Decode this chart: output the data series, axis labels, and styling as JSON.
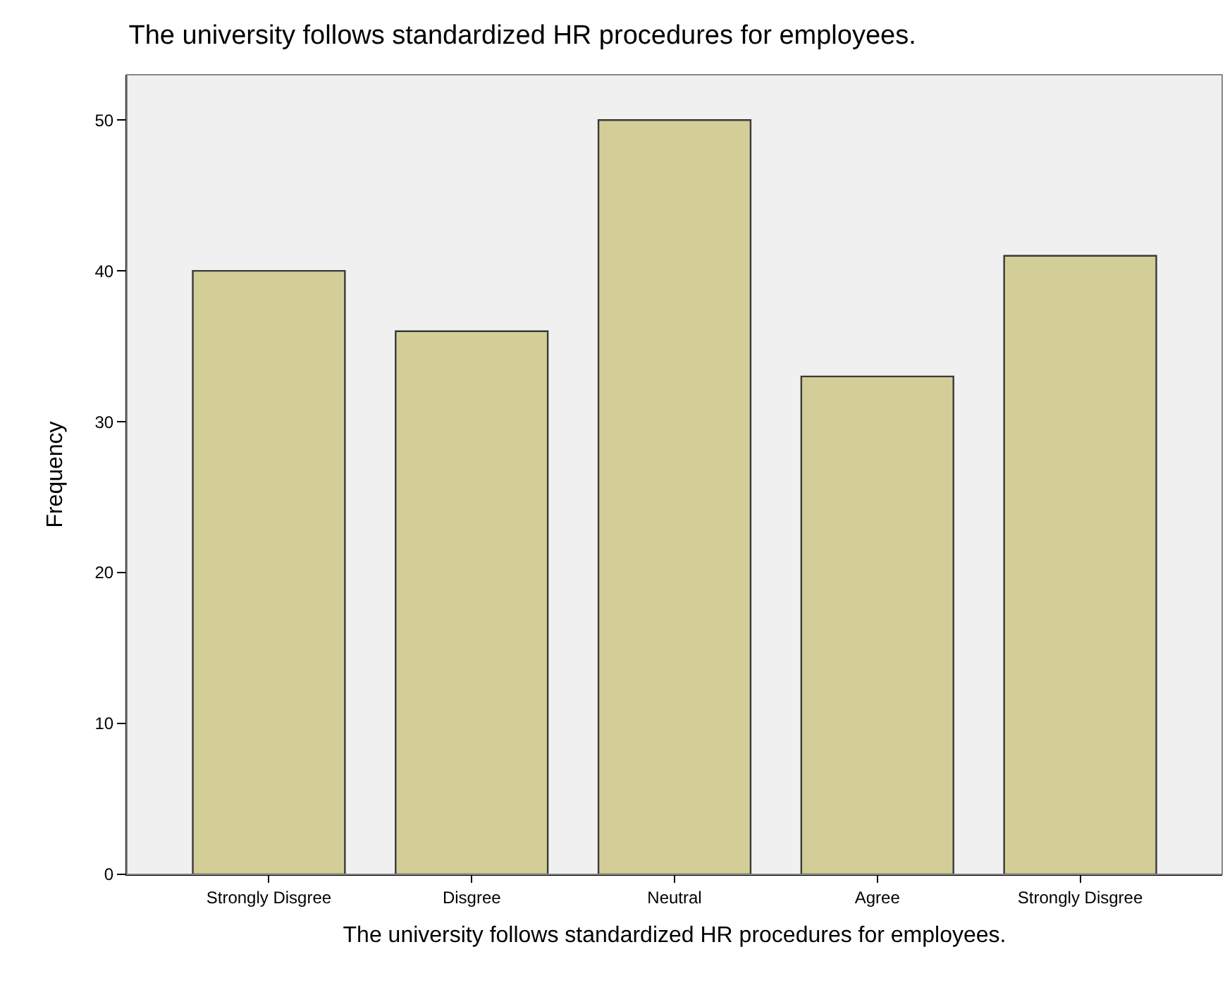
{
  "chart_data": {
    "type": "bar",
    "title": "The university follows standardized HR procedures for employees.",
    "xlabel": "The university follows standardized HR procedures for employees.",
    "ylabel": "Frequency",
    "categories": [
      "Strongly Disgree",
      "Disgree",
      "Neutral",
      "Agree",
      "Strongly Disgree"
    ],
    "values": [
      40,
      36,
      50,
      33,
      41
    ],
    "color": "#d3ce97",
    "ylim": [
      0,
      53
    ],
    "yticks": [
      0,
      10,
      20,
      30,
      40,
      50
    ],
    "grid": false
  }
}
